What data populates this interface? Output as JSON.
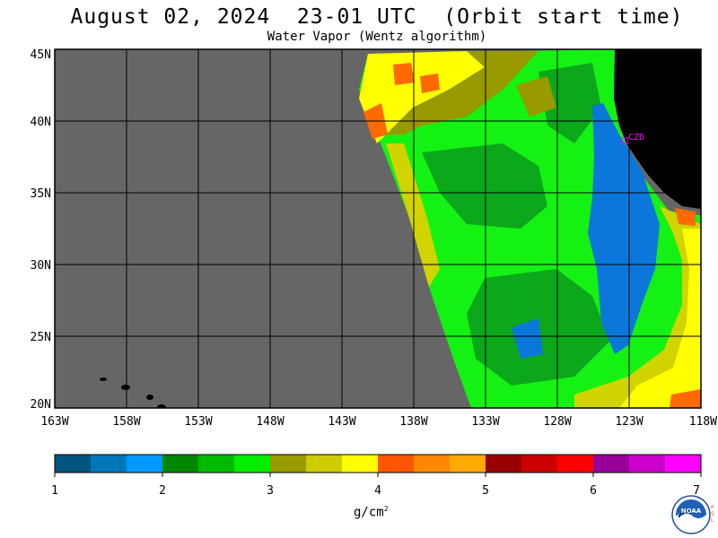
{
  "header": {
    "title": "August 02, 2024  23-01 UTC  (Orbit start time)",
    "subtitle": "Water Vapor (Wentz algorithm)"
  },
  "map": {
    "lon_labels": [
      "163W",
      "158W",
      "153W",
      "148W",
      "143W",
      "138W",
      "133W",
      "128W",
      "123W",
      "118W"
    ],
    "lat_labels": [
      "45N",
      "40N",
      "35N",
      "30N",
      "25N",
      "20N"
    ],
    "station_label": "CZD",
    "colors": {
      "no_data": "#666666",
      "land": "#000000",
      "blue": "#0b77db",
      "dark_green": "#0aa81a",
      "green": "#17d219",
      "bright_green": "#14f214",
      "olive": "#999900",
      "yellow_green": "#d2d400",
      "yellow": "#ffff00",
      "orange": "#ff6a00"
    }
  },
  "colorbar": {
    "colors": [
      "#005580",
      "#0077bb",
      "#0099ff",
      "#008800",
      "#00bb00",
      "#00ee00",
      "#999900",
      "#cccc00",
      "#ffff00",
      "#ff5500",
      "#ff8800",
      "#ffaa00",
      "#990000",
      "#cc0000",
      "#ff0000",
      "#990099",
      "#cc00cc",
      "#ff00ff"
    ],
    "tick_labels": [
      "1",
      "2",
      "3",
      "4",
      "5",
      "6",
      "7"
    ],
    "unit": "g/cm",
    "unit_exp": "2"
  },
  "logo": {
    "text": "NOAA",
    "side_text": "PSL"
  }
}
